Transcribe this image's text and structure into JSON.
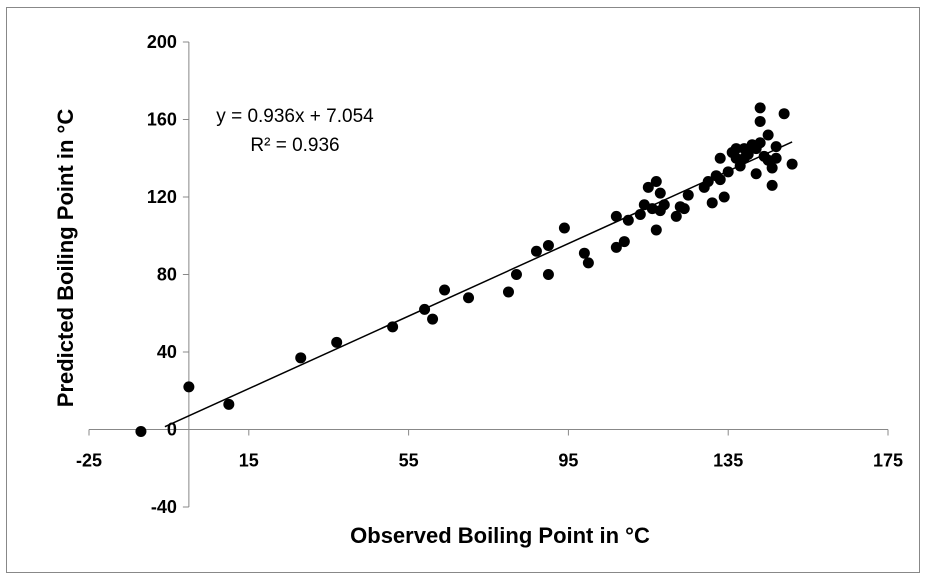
{
  "chart_data": {
    "type": "scatter",
    "xlabel": "Observed Boiling Point in °C",
    "ylabel": "Predicted Boiling Point in °C",
    "xlim": [
      -25,
      175
    ],
    "ylim": [
      -40,
      200
    ],
    "xticks": [
      -25,
      15,
      55,
      95,
      135,
      175
    ],
    "yticks": [
      -40,
      0,
      40,
      80,
      120,
      160,
      200
    ],
    "grid": false,
    "legend": "none",
    "marker_color": "#000000",
    "annotations": {
      "equation": "y = 0.936x + 7.054",
      "r_squared": "R² = 0.936"
    },
    "trendline": {
      "slope": 0.936,
      "intercept": 7.054,
      "x_range": [
        -6,
        151
      ]
    },
    "points": [
      [
        -12,
        -1
      ],
      [
        0,
        22
      ],
      [
        10,
        13
      ],
      [
        28,
        37
      ],
      [
        37,
        45
      ],
      [
        51,
        53
      ],
      [
        59,
        62
      ],
      [
        61,
        57
      ],
      [
        64,
        72
      ],
      [
        70,
        68
      ],
      [
        80,
        71
      ],
      [
        82,
        80
      ],
      [
        87,
        92
      ],
      [
        90,
        80
      ],
      [
        90,
        95
      ],
      [
        94,
        104
      ],
      [
        99,
        91
      ],
      [
        100,
        86
      ],
      [
        107,
        110
      ],
      [
        107,
        94
      ],
      [
        109,
        97
      ],
      [
        110,
        108
      ],
      [
        113,
        111
      ],
      [
        114,
        116
      ],
      [
        115,
        125
      ],
      [
        116,
        114
      ],
      [
        117,
        128
      ],
      [
        117,
        103
      ],
      [
        118,
        122
      ],
      [
        118,
        113
      ],
      [
        119,
        116
      ],
      [
        122,
        110
      ],
      [
        123,
        115
      ],
      [
        124,
        114
      ],
      [
        125,
        121
      ],
      [
        129,
        125
      ],
      [
        130,
        128
      ],
      [
        131,
        117
      ],
      [
        132,
        131
      ],
      [
        133,
        129
      ],
      [
        133,
        140
      ],
      [
        134,
        120
      ],
      [
        135,
        133
      ],
      [
        136,
        143
      ],
      [
        137,
        145
      ],
      [
        137,
        140
      ],
      [
        138,
        136
      ],
      [
        139,
        140
      ],
      [
        139,
        145
      ],
      [
        140,
        142
      ],
      [
        141,
        147
      ],
      [
        142,
        145
      ],
      [
        142,
        132
      ],
      [
        143,
        166
      ],
      [
        143,
        159
      ],
      [
        143,
        148
      ],
      [
        144,
        141
      ],
      [
        145,
        152
      ],
      [
        145,
        139
      ],
      [
        146,
        126
      ],
      [
        146,
        135
      ],
      [
        147,
        140
      ],
      [
        147,
        146
      ],
      [
        151,
        137
      ],
      [
        149,
        163
      ]
    ]
  }
}
